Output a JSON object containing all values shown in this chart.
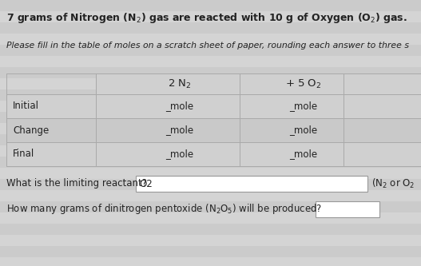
{
  "title": "7 grams of Nitrogen (N$_2$) gas are reacted with 10 g of Oxygen (O$_2$) gas.",
  "subtitle": "Please fill in the table of moles on a scratch sheet of paper, rounding each answer to three s",
  "col1_header": "2 N$_2$",
  "col2_header": "+ 5 O$_2$",
  "row_labels": [
    "Initial",
    "Change",
    "Final"
  ],
  "cell_text": "_mole",
  "question1_prefix": "What is the limiting reactant?",
  "question1_answer": "O2",
  "question1_suffix": "(N$_2$ or O$_2$",
  "question2": "How many grams of dinitrogen pentoxide (N$_2$O$_5$) will be produced?",
  "bg_color": "#d0d0d0",
  "stripe_color": "#c8c8c8",
  "cell_bg": "#d0d0d0",
  "white": "#ffffff",
  "text_color": "#222222",
  "border_color": "#aaaaaa",
  "title_fontsize": 9.0,
  "body_fontsize": 8.5
}
